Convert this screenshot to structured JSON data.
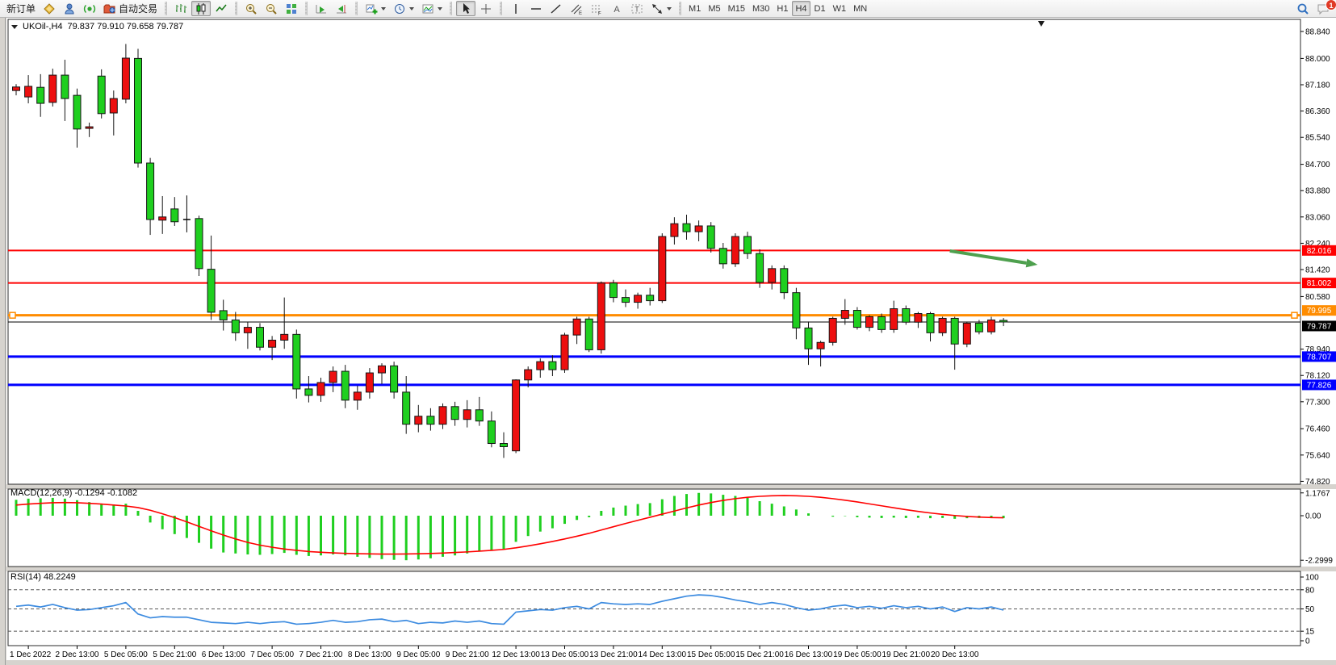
{
  "app": {
    "background": "#d6d3ce"
  },
  "toolbar": {
    "groups": [
      {
        "name": "trade",
        "items": [
          {
            "name": "new-order",
            "label": "新订单"
          },
          {
            "name": "market-watch",
            "icon": "gold"
          },
          {
            "name": "terminal",
            "icon": "terminal"
          },
          {
            "name": "signals",
            "icon": "broadcast"
          },
          {
            "name": "auto-trading",
            "icon": "autotrade",
            "label": "自动交易"
          }
        ]
      },
      {
        "name": "chart-type",
        "items": [
          {
            "name": "bar-chart-mode",
            "icon": "bar-chart"
          },
          {
            "name": "candlestick-mode",
            "icon": "candle-chart",
            "active": true
          },
          {
            "name": "line-chart-mode",
            "icon": "line-chart"
          }
        ]
      },
      {
        "name": "zoom",
        "items": [
          {
            "name": "zoom-in",
            "icon": "zoom-in"
          },
          {
            "name": "zoom-out",
            "icon": "zoom-out"
          },
          {
            "name": "tile-windows",
            "icon": "tile-windows"
          }
        ]
      },
      {
        "name": "scroll",
        "items": [
          {
            "name": "auto-scroll",
            "icon": "scroll-end"
          },
          {
            "name": "chart-shift",
            "icon": "chart-shift"
          }
        ]
      },
      {
        "name": "objects",
        "items": [
          {
            "name": "add-indicator",
            "icon": "add-indicator",
            "caret": true
          },
          {
            "name": "periods",
            "icon": "clock",
            "caret": true
          },
          {
            "name": "templates",
            "icon": "template",
            "caret": true
          }
        ]
      },
      {
        "name": "pointer",
        "items": [
          {
            "name": "cursor-tool",
            "icon": "cursor",
            "active": true
          },
          {
            "name": "crosshair-tool",
            "icon": "crosshair"
          }
        ]
      },
      {
        "name": "draw",
        "items": [
          {
            "name": "vertical-line-tool",
            "icon": "vline"
          },
          {
            "name": "horizontal-line-tool",
            "icon": "hline"
          },
          {
            "name": "trendline-tool",
            "icon": "trendline"
          },
          {
            "name": "channel-tool",
            "icon": "channel"
          },
          {
            "name": "fibonacci-tool",
            "icon": "fibo"
          },
          {
            "name": "text-tool",
            "icon": "text-A"
          },
          {
            "name": "text-label-tool",
            "icon": "label-T"
          },
          {
            "name": "arrows-tool",
            "icon": "arrows",
            "caret": true
          }
        ]
      },
      {
        "name": "timeframes",
        "items": [
          {
            "name": "tf-m1",
            "label": "M1",
            "tf": true
          },
          {
            "name": "tf-m5",
            "label": "M5",
            "tf": true
          },
          {
            "name": "tf-m15",
            "label": "M15",
            "tf": true
          },
          {
            "name": "tf-m30",
            "label": "M30",
            "tf": true
          },
          {
            "name": "tf-h1",
            "label": "H1",
            "tf": true
          },
          {
            "name": "tf-h4",
            "label": "H4",
            "tf": true,
            "active": true
          },
          {
            "name": "tf-d1",
            "label": "D1",
            "tf": true
          },
          {
            "name": "tf-w1",
            "label": "W1",
            "tf": true
          },
          {
            "name": "tf-mn",
            "label": "MN",
            "tf": true
          }
        ]
      }
    ],
    "right": [
      {
        "name": "search",
        "icon": "search"
      },
      {
        "name": "notifications",
        "icon": "chat",
        "badge": "1"
      }
    ]
  },
  "chart": {
    "title": "UKOil-,H4",
    "ohlc": "79.837 79.910 79.658 79.787",
    "macd_label": "MACD(12,26,9) -0.1294 -0.1082",
    "rsi_label": "RSI(14) 48.2249"
  },
  "chart_data": {
    "type": "candlestick",
    "symbol": "UKOil-",
    "timeframe": "H4",
    "last_ohlc": {
      "open": 79.837,
      "high": 79.91,
      "low": 79.658,
      "close": 79.787
    },
    "up_color": "#ED0F0F",
    "down_color": "#1FCF1F",
    "doji_color": "#000000",
    "price_axis": {
      "min": 74.82,
      "max": 88.84,
      "ticks": [
        88.84,
        88.0,
        87.18,
        86.36,
        85.54,
        84.7,
        83.88,
        83.06,
        82.24,
        81.42,
        80.58,
        78.94,
        78.12,
        77.3,
        76.46,
        75.64,
        74.82
      ]
    },
    "time_labels": [
      "1 Dec 2022",
      "2 Dec 13:00",
      "5 Dec 05:00",
      "5 Dec 21:00",
      "6 Dec 13:00",
      "7 Dec 05:00",
      "7 Dec 21:00",
      "8 Dec 13:00",
      "9 Dec 05:00",
      "9 Dec 21:00",
      "12 Dec 13:00",
      "13 Dec 05:00",
      "13 Dec 21:00",
      "14 Dec 13:00",
      "15 Dec 05:00",
      "15 Dec 21:00",
      "16 Dec 13:00",
      "19 Dec 05:00",
      "19 Dec 21:00",
      "20 Dec 13:00"
    ],
    "hlines": [
      {
        "price": 82.016,
        "label": "82.016",
        "color": "#FF0000",
        "width": 2,
        "handles": false
      },
      {
        "price": 81.002,
        "label": "81.002",
        "color": "#FF0000",
        "width": 2,
        "handles": false
      },
      {
        "price": 79.995,
        "label": "79.995",
        "color": "#FF8C00",
        "width": 3,
        "handles": true,
        "label_dy": -6
      },
      {
        "price": 79.787,
        "label": "79.787",
        "color": "#000000",
        "width": 1,
        "handles": false,
        "label_dy": 5
      },
      {
        "price": 78.707,
        "label": "78.707",
        "color": "#0000FF",
        "width": 3,
        "handles": false
      },
      {
        "price": 77.826,
        "label": "77.826",
        "color": "#0000FF",
        "width": 3,
        "handles": false
      }
    ],
    "trend_arrow": {
      "color": "#4EA04E",
      "from": {
        "bar": 76.6,
        "price": 82.0
      },
      "to": {
        "bar": 83.8,
        "price": 81.57
      }
    },
    "shift_marker_bar": 84.1,
    "candles": [
      [
        87.0,
        87.2,
        86.85,
        87.11
      ],
      [
        86.8,
        87.48,
        86.6,
        87.13
      ],
      [
        87.1,
        87.51,
        86.18,
        86.6
      ],
      [
        86.63,
        87.68,
        86.5,
        87.48
      ],
      [
        87.48,
        87.96,
        86.05,
        86.75
      ],
      [
        86.85,
        87.06,
        85.22,
        85.8
      ],
      [
        85.82,
        86.0,
        85.55,
        85.87
      ],
      [
        87.45,
        87.66,
        86.13,
        86.28
      ],
      [
        86.3,
        87.0,
        85.6,
        86.75
      ],
      [
        86.73,
        88.45,
        86.6,
        88.01
      ],
      [
        88.0,
        88.3,
        84.6,
        84.74
      ],
      [
        84.74,
        84.9,
        82.5,
        82.98
      ],
      [
        82.96,
        83.71,
        82.53,
        83.06
      ],
      [
        83.31,
        83.68,
        82.78,
        82.91
      ],
      [
        82.98,
        83.73,
        82.58,
        82.98
      ],
      [
        83.01,
        83.1,
        81.22,
        81.45
      ],
      [
        81.43,
        82.48,
        79.85,
        80.09
      ],
      [
        80.14,
        80.48,
        79.52,
        79.85
      ],
      [
        79.85,
        80.1,
        79.2,
        79.45
      ],
      [
        79.45,
        79.8,
        78.95,
        79.62
      ],
      [
        79.62,
        79.75,
        78.9,
        79.0
      ],
      [
        79.0,
        79.35,
        78.6,
        79.22
      ],
      [
        79.22,
        80.55,
        78.95,
        79.4
      ],
      [
        79.4,
        79.55,
        77.4,
        77.7
      ],
      [
        77.7,
        78.1,
        77.28,
        77.5
      ],
      [
        77.5,
        78.05,
        77.3,
        77.9
      ],
      [
        77.9,
        78.4,
        77.6,
        78.25
      ],
      [
        78.25,
        78.45,
        77.1,
        77.35
      ],
      [
        77.35,
        77.8,
        77.05,
        77.6
      ],
      [
        77.6,
        78.35,
        77.4,
        78.2
      ],
      [
        78.2,
        78.5,
        77.85,
        78.42
      ],
      [
        78.42,
        78.55,
        77.4,
        77.6
      ],
      [
        77.6,
        78.1,
        76.3,
        76.6
      ],
      [
        76.6,
        77.2,
        76.35,
        76.85
      ],
      [
        76.85,
        77.1,
        76.4,
        76.6
      ],
      [
        76.6,
        77.25,
        76.45,
        77.15
      ],
      [
        77.15,
        77.3,
        76.55,
        76.75
      ],
      [
        76.75,
        77.35,
        76.5,
        77.05
      ],
      [
        77.05,
        77.45,
        76.55,
        76.7
      ],
      [
        76.7,
        77.0,
        75.88,
        76.0
      ],
      [
        76.0,
        76.35,
        75.55,
        75.9
      ],
      [
        75.77,
        78.0,
        75.7,
        77.98
      ],
      [
        77.98,
        78.4,
        77.75,
        78.3
      ],
      [
        78.3,
        78.65,
        78.05,
        78.55
      ],
      [
        78.55,
        78.75,
        78.1,
        78.3
      ],
      [
        78.3,
        79.45,
        78.2,
        79.38
      ],
      [
        79.38,
        79.95,
        79.1,
        79.88
      ],
      [
        79.88,
        79.95,
        78.85,
        78.92
      ],
      [
        78.92,
        81.05,
        78.8,
        81.0
      ],
      [
        81.0,
        81.1,
        80.4,
        80.55
      ],
      [
        80.55,
        80.8,
        80.25,
        80.4
      ],
      [
        80.4,
        80.7,
        80.2,
        80.62
      ],
      [
        80.62,
        80.85,
        80.3,
        80.45
      ],
      [
        80.45,
        82.55,
        80.38,
        82.45
      ],
      [
        82.45,
        83.05,
        82.2,
        82.85
      ],
      [
        82.85,
        83.13,
        82.35,
        82.6
      ],
      [
        82.6,
        82.95,
        82.3,
        82.78
      ],
      [
        82.78,
        82.9,
        81.95,
        82.08
      ],
      [
        82.08,
        82.25,
        81.45,
        81.6
      ],
      [
        81.6,
        82.55,
        81.5,
        82.45
      ],
      [
        82.45,
        82.6,
        81.75,
        81.92
      ],
      [
        81.92,
        82.05,
        80.85,
        81.02
      ],
      [
        81.02,
        81.55,
        80.8,
        81.45
      ],
      [
        81.45,
        81.55,
        80.5,
        80.7
      ],
      [
        80.7,
        80.85,
        79.25,
        79.6
      ],
      [
        79.6,
        79.8,
        78.45,
        78.95
      ],
      [
        78.95,
        79.2,
        78.4,
        79.15
      ],
      [
        79.15,
        79.95,
        79.05,
        79.9
      ],
      [
        79.9,
        80.5,
        79.7,
        80.15
      ],
      [
        80.15,
        80.25,
        79.55,
        79.62
      ],
      [
        79.62,
        80.0,
        79.5,
        79.95
      ],
      [
        79.95,
        80.05,
        79.45,
        79.55
      ],
      [
        79.55,
        80.45,
        79.45,
        80.2
      ],
      [
        80.2,
        80.3,
        79.7,
        79.78
      ],
      [
        79.78,
        80.1,
        79.6,
        80.05
      ],
      [
        80.05,
        80.1,
        79.18,
        79.45
      ],
      [
        79.45,
        79.95,
        79.35,
        79.9
      ],
      [
        79.9,
        79.95,
        78.3,
        79.1
      ],
      [
        79.1,
        79.8,
        79.0,
        79.75
      ],
      [
        79.75,
        79.85,
        79.4,
        79.48
      ],
      [
        79.48,
        79.95,
        79.4,
        79.85
      ],
      [
        79.837,
        79.91,
        79.658,
        79.787
      ]
    ],
    "macd": {
      "params": "12,26,9",
      "current_macd": -0.1294,
      "current_signal": -0.1082,
      "axis": [
        "1.1767",
        "0.00",
        "-2.2999"
      ],
      "axis_values": [
        1.1767,
        0,
        -2.2999
      ],
      "hist_color": "#1FCF1F",
      "signal_color": "#FF0000",
      "histogram": [
        0.82,
        0.88,
        0.9,
        0.92,
        0.88,
        0.8,
        0.7,
        0.6,
        0.58,
        0.62,
        0.25,
        -0.35,
        -0.7,
        -0.95,
        -1.15,
        -1.4,
        -1.7,
        -1.9,
        -1.95,
        -2.0,
        -2.02,
        -1.98,
        -1.92,
        -2.02,
        -2.08,
        -2.05,
        -2.0,
        -2.05,
        -2.12,
        -2.18,
        -2.24,
        -2.28,
        -2.2999,
        -2.26,
        -2.2,
        -2.12,
        -2.05,
        -1.95,
        -1.85,
        -1.8,
        -1.72,
        -1.35,
        -1.05,
        -0.82,
        -0.65,
        -0.42,
        -0.22,
        -0.08,
        0.25,
        0.42,
        0.52,
        0.6,
        0.65,
        0.85,
        1.02,
        1.12,
        1.1767,
        1.15,
        1.08,
        1.02,
        0.92,
        0.75,
        0.62,
        0.48,
        0.32,
        0.12,
        0.0,
        -0.05,
        -0.02,
        -0.08,
        -0.1,
        -0.12,
        -0.1,
        -0.12,
        -0.11,
        -0.13,
        -0.12,
        -0.16,
        -0.13,
        -0.12,
        -0.12,
        -0.1294
      ],
      "signal": [
        0.55,
        0.6,
        0.64,
        0.67,
        0.68,
        0.67,
        0.64,
        0.6,
        0.55,
        0.5,
        0.42,
        0.28,
        0.1,
        -0.1,
        -0.32,
        -0.55,
        -0.78,
        -1.0,
        -1.2,
        -1.38,
        -1.52,
        -1.63,
        -1.72,
        -1.79,
        -1.85,
        -1.89,
        -1.92,
        -1.945,
        -1.96,
        -1.97,
        -1.98,
        -1.98,
        -1.975,
        -1.965,
        -1.95,
        -1.93,
        -1.9,
        -1.87,
        -1.83,
        -1.79,
        -1.74,
        -1.66,
        -1.56,
        -1.45,
        -1.33,
        -1.2,
        -1.06,
        -0.91,
        -0.74,
        -0.57,
        -0.4,
        -0.24,
        -0.08,
        0.08,
        0.24,
        0.4,
        0.55,
        0.68,
        0.79,
        0.88,
        0.95,
        1.0,
        1.03,
        1.04,
        1.03,
        1.0,
        0.95,
        0.88,
        0.8,
        0.71,
        0.61,
        0.51,
        0.41,
        0.31,
        0.22,
        0.14,
        0.07,
        0.01,
        -0.04,
        -0.07,
        -0.095,
        -0.1082
      ]
    },
    "rsi": {
      "period": 14,
      "current": 48.2249,
      "levels": [
        80,
        50,
        15
      ],
      "axis": [
        "100",
        "80",
        "50",
        "15",
        "0"
      ],
      "axis_values": [
        100,
        80,
        50,
        15,
        0
      ],
      "color": "#3C8BE0",
      "values": [
        54,
        56,
        53,
        57,
        52,
        48,
        49,
        52,
        55,
        60,
        42,
        36,
        38,
        37,
        37,
        33,
        29,
        28,
        27,
        29,
        27,
        29,
        30,
        26,
        27,
        29,
        32,
        29,
        30,
        33,
        34,
        30,
        32,
        27,
        29,
        28,
        31,
        29,
        31,
        27,
        26,
        45,
        47,
        49,
        48,
        52,
        54,
        50,
        60,
        58,
        57,
        58,
        57,
        62,
        66,
        70,
        72,
        71,
        68,
        64,
        61,
        57,
        60,
        57,
        52,
        48,
        50,
        54,
        56,
        52,
        54,
        51,
        55,
        52,
        54,
        50,
        53,
        46,
        52,
        50,
        53,
        48.2249
      ]
    }
  }
}
